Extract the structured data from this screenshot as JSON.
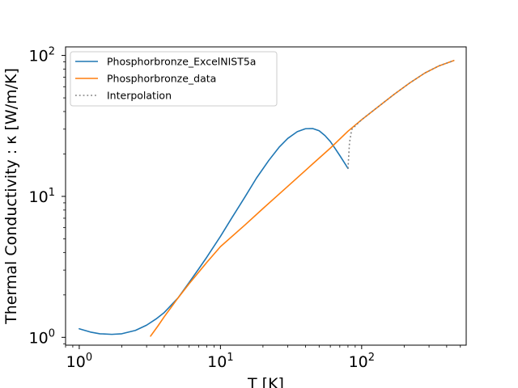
{
  "chart_data": {
    "type": "line",
    "title": "",
    "xlabel": "T [K]",
    "ylabel": "Thermal Conductivity : κ [W/m/K]",
    "xscale": "log",
    "yscale": "log",
    "xlim": [
      0.8,
      550
    ],
    "ylim": [
      0.88,
      115
    ],
    "grid": false,
    "legend_position": "top-left",
    "x_major_ticks": [
      {
        "value": 1,
        "base": "10",
        "exp": "0"
      },
      {
        "value": 10,
        "base": "10",
        "exp": "1"
      },
      {
        "value": 100,
        "base": "10",
        "exp": "2"
      }
    ],
    "y_major_ticks": [
      {
        "value": 1,
        "base": "10",
        "exp": "0"
      },
      {
        "value": 10,
        "base": "10",
        "exp": "1"
      },
      {
        "value": 100,
        "base": "10",
        "exp": "2"
      }
    ],
    "series": [
      {
        "name": "Phosphorbronze_ExcelNIST5a",
        "color": "#1f77b4",
        "style": "solid",
        "x": [
          1.0,
          1.2,
          1.4,
          1.7,
          2.0,
          2.5,
          3.0,
          3.5,
          4.0,
          5.0,
          6.0,
          7.0,
          8.0,
          10.0,
          12.0,
          15.0,
          18.0,
          22.0,
          26.0,
          30.0,
          35.0,
          40.0,
          45.0,
          50.0,
          55.0,
          60.0,
          65.0,
          70.0,
          75.0,
          80.0
        ],
        "y": [
          1.15,
          1.09,
          1.06,
          1.05,
          1.06,
          1.12,
          1.22,
          1.35,
          1.5,
          1.9,
          2.45,
          3.05,
          3.7,
          5.2,
          7.0,
          10.0,
          13.5,
          18.0,
          22.3,
          25.8,
          28.8,
          30.2,
          30.3,
          29.2,
          27.0,
          24.5,
          21.8,
          19.5,
          17.5,
          15.8
        ]
      },
      {
        "name": "Phosphorbronze_data",
        "color": "#ff7f0e",
        "style": "solid",
        "x": [
          3.2,
          3.6,
          4.0,
          5.0,
          6.0,
          8.0,
          10.0,
          15.0,
          20.0,
          30.0,
          45.0,
          60.0,
          80.0,
          100.0,
          130.0,
          170.0,
          220.0,
          280.0,
          350.0,
          450.0
        ],
        "y": [
          1.02,
          1.2,
          1.4,
          1.9,
          2.4,
          3.4,
          4.4,
          6.3,
          8.2,
          11.8,
          17.0,
          22.0,
          29.0,
          35.0,
          43.0,
          53.0,
          64.0,
          75.0,
          84.0,
          92.0
        ]
      },
      {
        "name": "Interpolation",
        "color": "#7f7f7f",
        "style": "dotted",
        "x": [
          80.0,
          80.5,
          82.0,
          85.0,
          100.0,
          130.0,
          170.0,
          220.0,
          280.0,
          350.0,
          450.0
        ],
        "y": [
          15.8,
          17.5,
          24.0,
          29.8,
          35.0,
          43.0,
          53.0,
          64.0,
          75.0,
          84.0,
          92.0
        ]
      }
    ]
  }
}
